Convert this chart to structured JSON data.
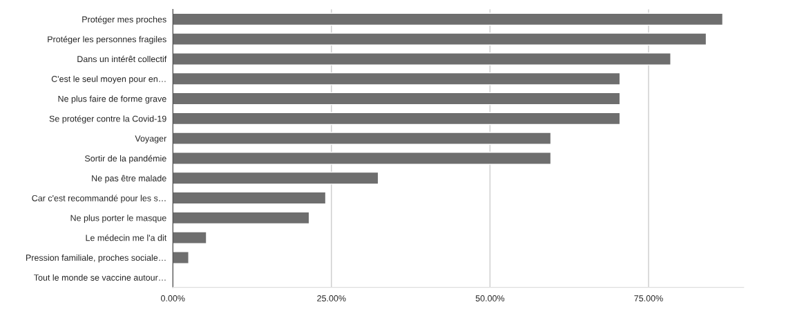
{
  "chart_data": {
    "type": "bar",
    "orientation": "horizontal",
    "categories": [
      "Protéger mes proches",
      "Protéger les personnes fragiles",
      "Dans un intérêt collectif",
      "C'est le seul moyen pour en…",
      "Ne plus faire de forme grave",
      "Se protéger contre la Covid-19",
      "Voyager",
      "Sortir de la pandémie",
      "Ne pas être malade",
      "Car c'est recommandé pour les s…",
      "Ne plus porter le masque",
      "Le médecin me l'a dit",
      "Pression familiale, proches sociale…",
      "Tout le monde se vaccine autour…"
    ],
    "values": [
      86.7,
      84.1,
      78.5,
      70.5,
      70.5,
      70.5,
      59.6,
      59.6,
      32.4,
      24.1,
      21.5,
      5.3,
      2.5,
      null
    ],
    "color": "#6e6e6e",
    "xlim": [
      0,
      90
    ],
    "xticks": [
      {
        "value": 0,
        "label": "0.00%"
      },
      {
        "value": 25,
        "label": "25.00%"
      },
      {
        "value": 50,
        "label": "50.00%"
      },
      {
        "value": 75,
        "label": "75.00%"
      }
    ],
    "grid": "x",
    "legend": false
  }
}
